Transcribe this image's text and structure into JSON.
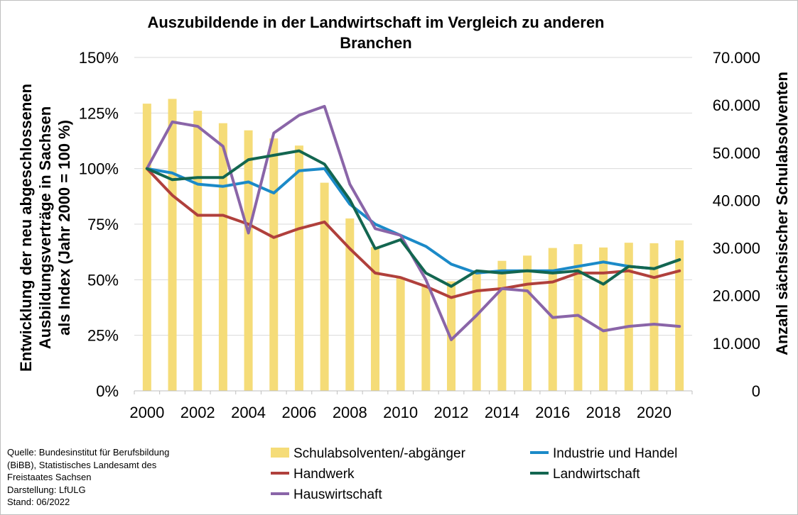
{
  "chart_data": {
    "type": "bar+line",
    "title_lines": [
      "Auszubildende in der Landwirtschaft im Vergleich zu anderen",
      "Branchen"
    ],
    "ylabel_left_lines": [
      "Entwicklung der neu abgeschlossenen",
      "Ausbildungsverträge in Sachsen",
      "als Index (Jahr 2000 = 100 %)"
    ],
    "ylabel_right": "Anzahl sächsischer Schulabsolventen",
    "x": [
      2000,
      2001,
      2002,
      2003,
      2004,
      2005,
      2006,
      2007,
      2008,
      2009,
      2010,
      2011,
      2012,
      2013,
      2014,
      2015,
      2016,
      2017,
      2018,
      2019,
      2020,
      2021
    ],
    "x_tick_labels": [
      "2000",
      "2002",
      "2004",
      "2006",
      "2008",
      "2010",
      "2012",
      "2014",
      "2016",
      "2018",
      "2020"
    ],
    "x_tick_values": [
      2000,
      2002,
      2004,
      2006,
      2008,
      2010,
      2012,
      2014,
      2016,
      2018,
      2020
    ],
    "y_left": {
      "lim": [
        0,
        150
      ],
      "ticks": [
        0,
        25,
        50,
        75,
        100,
        125,
        150
      ],
      "tick_labels": [
        "0%",
        "25%",
        "50%",
        "75%",
        "100%",
        "125%",
        "150%"
      ]
    },
    "y_right": {
      "lim": [
        0,
        70000
      ],
      "ticks": [
        0,
        10000,
        20000,
        30000,
        40000,
        50000,
        60000,
        70000
      ],
      "tick_labels": [
        "0",
        "10.000",
        "20.000",
        "30.000",
        "40.000",
        "50.000",
        "60.000",
        "70.000"
      ]
    },
    "grid": true,
    "bars": {
      "name": "Schulabsolventen/-abgänger",
      "axis": "right",
      "color": "#f5dc78",
      "values": [
        60300,
        61300,
        58800,
        56200,
        54700,
        53000,
        51500,
        43700,
        36200,
        30200,
        23800,
        22000,
        23000,
        25300,
        27300,
        28400,
        30000,
        30800,
        30100,
        31100,
        31000,
        31600
      ]
    },
    "series": [
      {
        "name": "Industrie und Handel",
        "color": "#1b8ac8",
        "values": [
          100,
          98,
          93,
          92,
          94,
          89,
          99,
          100,
          84,
          75,
          70,
          65,
          57,
          53,
          54,
          54,
          54,
          56,
          58,
          56,
          55,
          59
        ]
      },
      {
        "name": "Handwerk",
        "color": "#b0403c",
        "values": [
          100,
          88,
          79,
          79,
          75,
          69,
          73,
          76,
          64,
          53,
          51,
          47,
          42,
          45,
          46,
          48,
          49,
          53,
          53,
          54,
          51,
          54
        ]
      },
      {
        "name": "Hauswirtschaft",
        "color": "#8a65a8",
        "values": [
          100,
          121,
          119,
          110,
          71,
          116,
          124,
          128,
          93,
          73,
          70,
          50,
          23,
          34,
          46,
          45,
          33,
          34,
          27,
          29,
          30,
          29
        ]
      },
      {
        "name": "Landwirtschaft",
        "color": "#136650",
        "values": [
          100,
          95,
          96,
          96,
          104,
          106,
          108,
          102,
          86,
          64,
          68,
          53,
          47,
          54,
          53,
          54,
          53,
          54,
          48,
          56,
          55,
          59
        ]
      }
    ],
    "legend": {
      "placement": "bottom",
      "items": [
        {
          "label": "Schulabsolventen/-abgänger",
          "kind": "bar",
          "color": "#f5dc78"
        },
        {
          "label": "Industrie und Handel",
          "kind": "line",
          "color": "#1b8ac8"
        },
        {
          "label": "Handwerk",
          "kind": "line",
          "color": "#b0403c"
        },
        {
          "label": "Landwirtschaft",
          "kind": "line",
          "color": "#136650"
        },
        {
          "label": "Hauswirtschaft",
          "kind": "line",
          "color": "#8a65a8"
        }
      ]
    }
  },
  "source": {
    "lines": [
      "Quelle:  Bundesinstitut für Berufsbildung",
      "(BiBB), Statistisches Landesamt des",
      "Freistaates Sachsen",
      "Darstellung:  LfULG",
      "Stand:  06/2022"
    ]
  }
}
